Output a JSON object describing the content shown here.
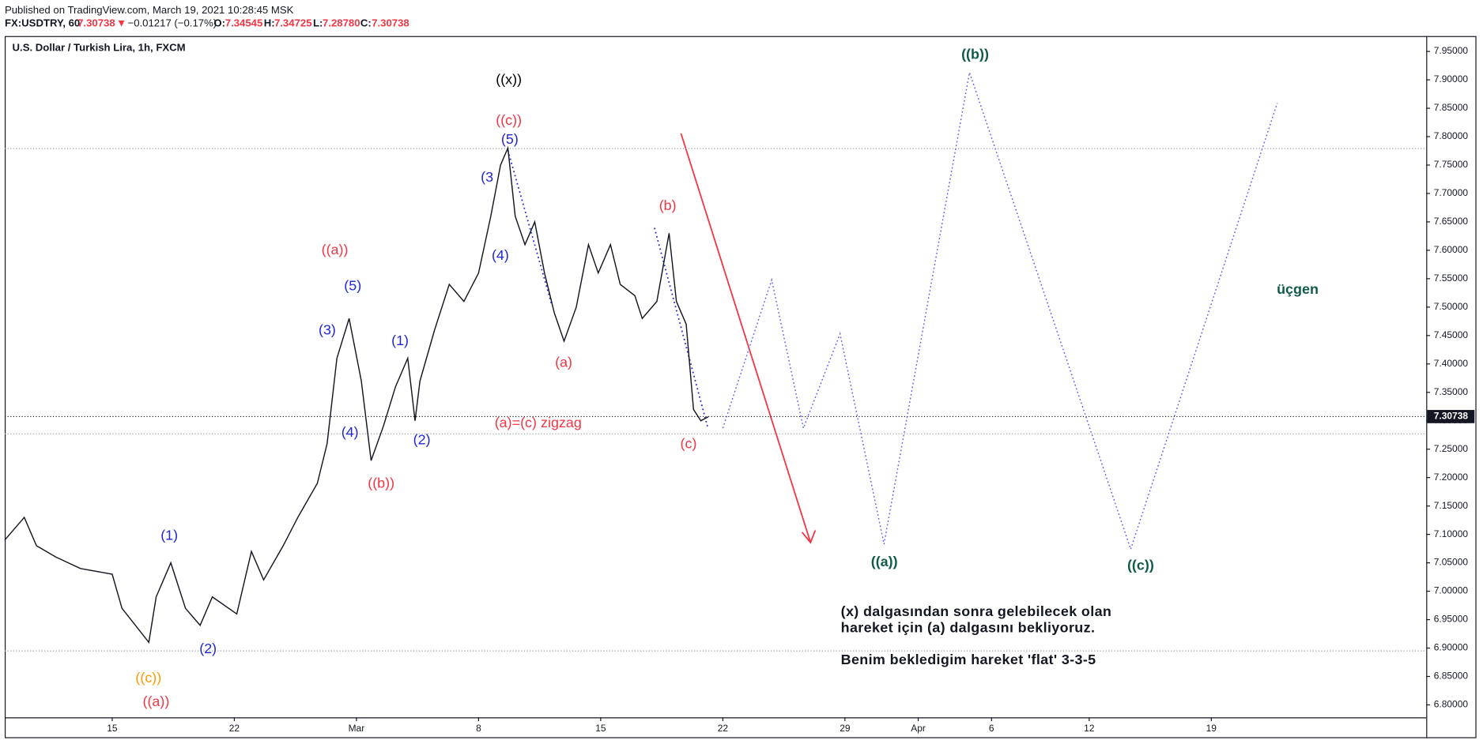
{
  "header": {
    "published": "Published on TradingView.com, March 19, 2021 10:28:45 MSK",
    "symbol": "FX:USDTRY, 60",
    "last": "7.30738",
    "arrow": "▼",
    "change": "−0.01217 (−0.17%)",
    "o_label": "O:",
    "o": "7.34545",
    "h_label": "H:",
    "h": "7.34725",
    "l_label": "L:",
    "l": "7.28780",
    "c_label": "C:",
    "c": "7.30738"
  },
  "chart_data": {
    "type": "line",
    "title": "U.S. Dollar / Turkish Lira, 1h, FXCM",
    "x": [
      -4.4,
      -3.6,
      -3.1,
      -2.3,
      -1.3,
      0.0,
      0.4,
      1.5,
      1.8,
      2.4,
      3.0,
      3.6,
      4.1,
      5.1,
      5.7,
      6.2,
      7.0,
      7.6,
      8.4,
      8.8,
      9.2,
      9.7,
      10.2,
      10.6,
      11.1,
      11.6,
      12.1,
      12.4,
      12.6,
      13.2,
      13.8,
      14.4,
      15.0,
      15.5,
      15.9,
      16.2,
      16.5,
      16.9,
      17.3,
      17.7,
      18.1,
      18.5,
      19.0,
      19.5,
      19.9,
      20.4,
      20.8,
      21.4,
      21.7,
      22.3,
      22.8,
      23.1,
      23.5,
      23.8,
      24.1,
      24.4
    ],
    "series": [
      {
        "name": "USDTRY",
        "color": "#131722",
        "values": [
          7.09,
          7.13,
          7.08,
          7.06,
          7.04,
          7.03,
          6.97,
          6.91,
          6.99,
          7.05,
          6.97,
          6.94,
          6.99,
          6.96,
          7.07,
          7.02,
          7.08,
          7.13,
          7.19,
          7.26,
          7.41,
          7.48,
          7.37,
          7.23,
          7.29,
          7.36,
          7.41,
          7.3,
          7.37,
          7.46,
          7.54,
          7.51,
          7.56,
          7.66,
          7.75,
          7.78,
          7.66,
          7.61,
          7.65,
          7.56,
          7.49,
          7.44,
          7.5,
          7.61,
          7.56,
          7.61,
          7.54,
          7.52,
          7.48,
          7.51,
          7.63,
          7.51,
          7.47,
          7.32,
          7.3,
          7.307
        ]
      }
    ],
    "projection": {
      "color": "#5b5ef0",
      "x": [
        25.0,
        27.0,
        28.3,
        29.8,
        31.6,
        35.1,
        41.7,
        47.7
      ],
      "values": [
        7.287,
        7.548,
        7.287,
        7.453,
        7.083,
        7.913,
        7.074,
        7.859
      ]
    },
    "last_price": 7.30738,
    "hlines": [
      7.779,
      7.277,
      6.895
    ],
    "xlim": [
      -4.4,
      53.8
    ],
    "ylim": [
      6.778,
      7.977
    ],
    "xticks": [
      {
        "value": 0,
        "label": "15"
      },
      {
        "value": 5,
        "label": "22"
      },
      {
        "value": 10,
        "label": "Mar"
      },
      {
        "value": 15,
        "label": "8"
      },
      {
        "value": 20,
        "label": "15"
      },
      {
        "value": 25,
        "label": "22"
      },
      {
        "value": 30,
        "label": "29"
      },
      {
        "value": 33,
        "label": "Apr"
      },
      {
        "value": 36,
        "label": "6"
      },
      {
        "value": 40,
        "label": "12"
      },
      {
        "value": 45,
        "label": "19"
      }
    ],
    "yticks": [
      {
        "value": 6.8,
        "label": "6.80000"
      },
      {
        "value": 6.85,
        "label": "6.85000"
      },
      {
        "value": 6.9,
        "label": "6.90000"
      },
      {
        "value": 6.95,
        "label": "6.95000"
      },
      {
        "value": 7.0,
        "label": "7.00000"
      },
      {
        "value": 7.05,
        "label": "7.05000"
      },
      {
        "value": 7.1,
        "label": "7.10000"
      },
      {
        "value": 7.15,
        "label": "7.15000"
      },
      {
        "value": 7.2,
        "label": "7.20000"
      },
      {
        "value": 7.25,
        "label": "7.25000"
      },
      {
        "value": 7.3,
        "label": "7.30000"
      },
      {
        "value": 7.35,
        "label": "7.35000"
      },
      {
        "value": 7.4,
        "label": "7.40000"
      },
      {
        "value": 7.45,
        "label": "7.45000"
      },
      {
        "value": 7.5,
        "label": "7.50000"
      },
      {
        "value": 7.55,
        "label": "7.55000"
      },
      {
        "value": 7.6,
        "label": "7.60000"
      },
      {
        "value": 7.65,
        "label": "7.65000"
      },
      {
        "value": 7.7,
        "label": "7.70000"
      },
      {
        "value": 7.75,
        "label": "7.75000"
      },
      {
        "value": 7.8,
        "label": "7.80000"
      },
      {
        "value": 7.85,
        "label": "7.85000"
      },
      {
        "value": 7.9,
        "label": "7.90000"
      },
      {
        "value": 7.95,
        "label": "7.95000"
      }
    ],
    "annotations": [
      {
        "text": "((x))",
        "color": "#000000"
      },
      {
        "text": "((c))",
        "color": "#f23645"
      },
      {
        "text": "((a))",
        "color": "#f23645"
      },
      {
        "text": "((b))",
        "color": "#f23645"
      },
      {
        "text": "(a)=(c)  zigzag",
        "color": "#f23645"
      },
      {
        "text": "(b)",
        "color": "#f23645"
      },
      {
        "text": "(a)",
        "color": "#f23645"
      },
      {
        "text": "(c)",
        "color": "#f23645"
      },
      {
        "text": "((a))",
        "color": "#f23645"
      },
      {
        "text": "((c))",
        "color": "#ff9800"
      },
      {
        "text": "(5)",
        "color": "#2127d6"
      },
      {
        "text": "(3",
        "color": "#2127d6"
      },
      {
        "text": "(4)",
        "color": "#2127d6"
      },
      {
        "text": "(5)",
        "color": "#2127d6"
      },
      {
        "text": "(3)",
        "color": "#2127d6"
      },
      {
        "text": "(1)",
        "color": "#2127d6"
      },
      {
        "text": "(4)",
        "color": "#2127d6"
      },
      {
        "text": "(2)",
        "color": "#2127d6"
      },
      {
        "text": "(1)",
        "color": "#2127d6"
      },
      {
        "text": "(2)",
        "color": "#2127d6"
      },
      {
        "text": "((b))",
        "color": "#0f5a4a"
      },
      {
        "text": "((a))",
        "color": "#0f5a4a"
      },
      {
        "text": "((c))",
        "color": "#0f5a4a"
      },
      {
        "text": "üçgen",
        "color": "#0f5a4a"
      }
    ],
    "note": [
      "(x) dalgasından sonra gelebilecek olan",
      "hareket için (a) dalgasını bekliyoruz.",
      "Benim bekledigim hareket 'flat' 3-3-5"
    ]
  }
}
